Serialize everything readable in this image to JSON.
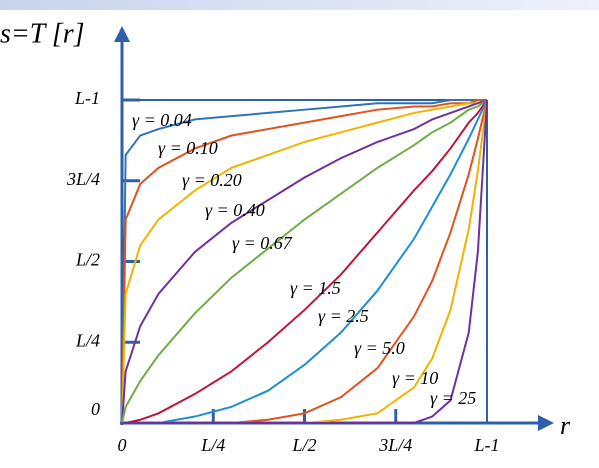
{
  "chart_data": {
    "type": "line",
    "ylabel": "s=T [r]",
    "xlabel": "r",
    "x": [
      0,
      0.01,
      0.05,
      0.1,
      0.2,
      0.3,
      0.4,
      0.5,
      0.6,
      0.7,
      0.8,
      0.85,
      0.9,
      0.95,
      0.975,
      1
    ],
    "xlim": [
      0,
      1
    ],
    "ylim": [
      0,
      1
    ],
    "xticks": [
      0,
      {
        "value": 0.25,
        "label": "L/4"
      },
      {
        "value": 0.5,
        "label": "L/2"
      },
      {
        "value": 0.75,
        "label": "3L/4"
      },
      {
        "value": 1,
        "label": "L-1"
      }
    ],
    "yticks": [
      0,
      {
        "value": 0.25,
        "label": "L/4"
      },
      {
        "value": 0.5,
        "label": "L/2"
      },
      {
        "value": 0.75,
        "label": "3L/4"
      },
      {
        "value": 1,
        "label": "L-1"
      }
    ],
    "series": [
      {
        "name": "γ = 0.04",
        "color": "#2e75b6",
        "values": [
          0,
          0.83,
          0.89,
          0.91,
          0.94,
          0.95,
          0.96,
          0.97,
          0.98,
          0.99,
          0.99,
          0.99,
          1.0,
          1.0,
          1.0,
          1
        ]
      },
      {
        "name": "γ = 0.10",
        "color": "#e0521e",
        "values": [
          0,
          0.63,
          0.74,
          0.79,
          0.85,
          0.89,
          0.91,
          0.93,
          0.95,
          0.97,
          0.98,
          0.98,
          0.99,
          0.99,
          1.0,
          1
        ]
      },
      {
        "name": "γ = 0.20",
        "color": "#f0b400",
        "values": [
          0,
          0.4,
          0.55,
          0.63,
          0.72,
          0.79,
          0.83,
          0.87,
          0.9,
          0.93,
          0.96,
          0.97,
          0.98,
          0.99,
          0.99,
          1
        ]
      },
      {
        "name": "γ = 0.40",
        "color": "#7030a0",
        "values": [
          0,
          0.16,
          0.3,
          0.4,
          0.53,
          0.62,
          0.69,
          0.76,
          0.82,
          0.87,
          0.91,
          0.94,
          0.96,
          0.98,
          0.99,
          1
        ]
      },
      {
        "name": "γ = 0.67",
        "color": "#70ad47",
        "values": [
          0,
          0.05,
          0.13,
          0.21,
          0.34,
          0.45,
          0.54,
          0.63,
          0.71,
          0.79,
          0.86,
          0.9,
          0.93,
          0.97,
          0.98,
          1
        ]
      },
      {
        "name": "γ = 1.5",
        "color": "#c0143c",
        "values": [
          0,
          0.0,
          0.01,
          0.03,
          0.09,
          0.16,
          0.25,
          0.35,
          0.46,
          0.59,
          0.72,
          0.78,
          0.85,
          0.93,
          0.96,
          1
        ]
      },
      {
        "name": "γ = 2.5",
        "color": "#1f8fd0",
        "values": [
          0,
          0,
          0,
          0,
          0.02,
          0.05,
          0.1,
          0.18,
          0.28,
          0.41,
          0.57,
          0.67,
          0.77,
          0.88,
          0.94,
          1
        ]
      },
      {
        "name": "γ = 5.0",
        "color": "#e0521e",
        "values": [
          0,
          0,
          0,
          0,
          0,
          0,
          0.01,
          0.03,
          0.08,
          0.17,
          0.33,
          0.44,
          0.59,
          0.77,
          0.88,
          1
        ]
      },
      {
        "name": "γ = 10",
        "color": "#f0b400",
        "values": [
          0,
          0,
          0,
          0,
          0,
          0,
          0,
          0,
          0.01,
          0.03,
          0.11,
          0.2,
          0.35,
          0.6,
          0.78,
          1
        ]
      },
      {
        "name": "γ = 25",
        "color": "#7030a0",
        "values": [
          0,
          0,
          0,
          0,
          0,
          0,
          0,
          0,
          0,
          0,
          0,
          0.02,
          0.07,
          0.28,
          0.53,
          1
        ]
      }
    ]
  }
}
